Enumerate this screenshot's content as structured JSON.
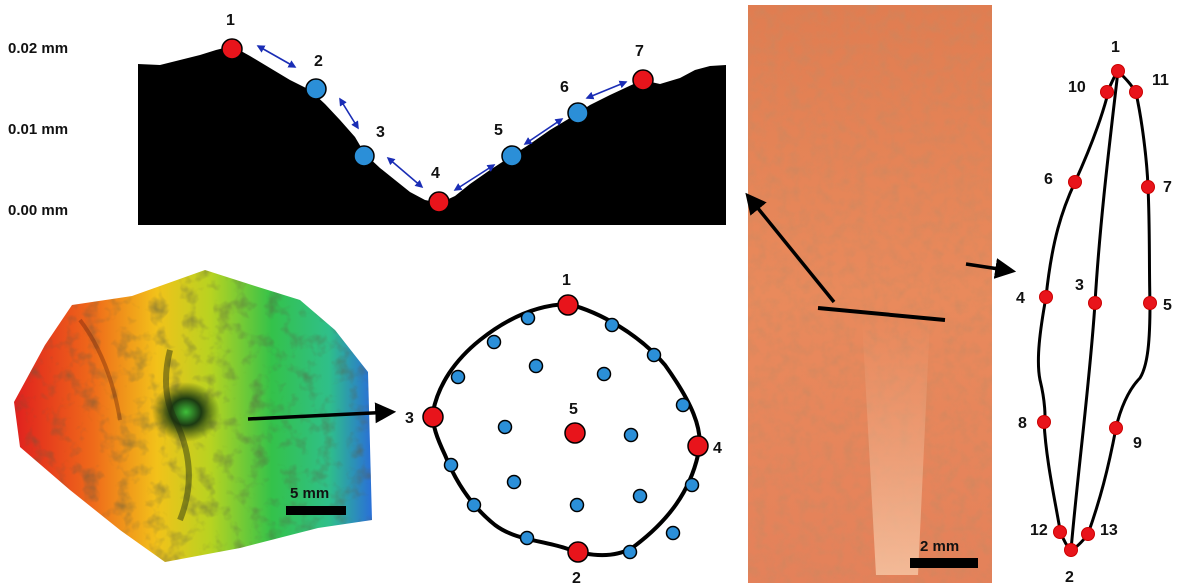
{
  "profile": {
    "y_axis_labels": [
      "0.02 mm",
      "0.01 mm",
      "0.00 mm"
    ],
    "point_labels": [
      "1",
      "2",
      "3",
      "4",
      "5",
      "6",
      "7"
    ]
  },
  "heatmap": {
    "scale_label": "5 mm"
  },
  "contour": {
    "point_labels": [
      "1",
      "2",
      "3",
      "4",
      "5"
    ]
  },
  "photo": {
    "scale_label": "2 mm"
  },
  "elongated": {
    "point_labels": [
      "1",
      "2",
      "3",
      "4",
      "5",
      "6",
      "7",
      "8",
      "9",
      "10",
      "11",
      "12",
      "13"
    ]
  },
  "colors": {
    "red_point": "#e8141b",
    "blue_point": "#2b8fd8",
    "arrow_blue": "#1a2db5",
    "photo_base": "#e8865a"
  }
}
